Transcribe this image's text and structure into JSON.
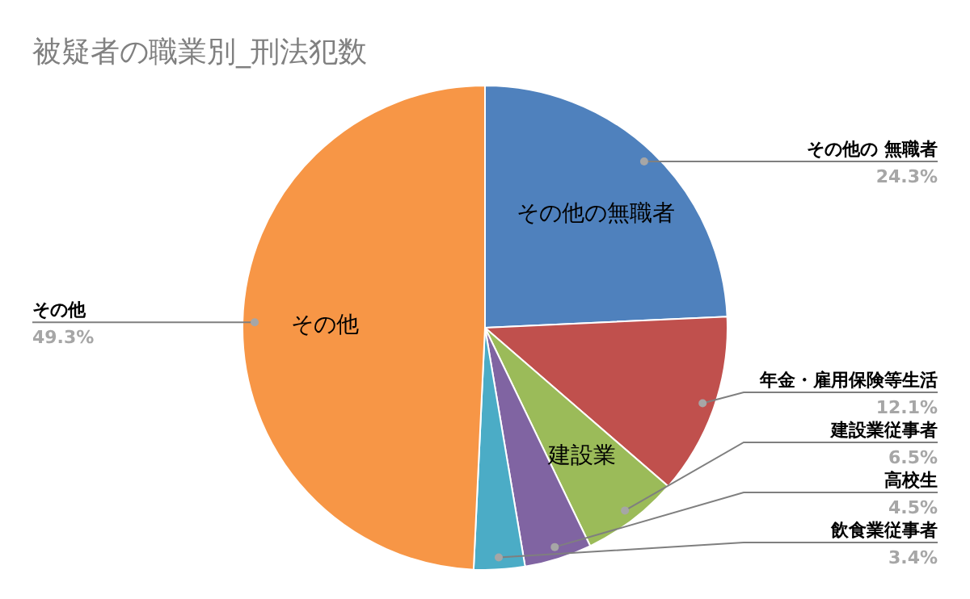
{
  "chart_data": {
    "type": "pie",
    "title": "被疑者の職業別_刑法犯数",
    "categories": [
      "その他の 無職者",
      "年金・雇用保険等生活",
      "建設業従事者",
      "高校生",
      "飲食業従事者",
      "その他"
    ],
    "values": [
      24.3,
      12.1,
      6.5,
      4.5,
      3.4,
      49.3
    ],
    "value_labels": [
      "24.3%",
      "12.1%",
      "6.5%",
      "4.5%",
      "3.4%",
      "49.3%"
    ],
    "colors": [
      "#4f81bd",
      "#c0504d",
      "#9bbb59",
      "#8064a2",
      "#4bacc6",
      "#f79646"
    ],
    "annotations": [
      {
        "text": "その他の無職者",
        "x": "その他の 無職者"
      },
      {
        "text": "建設業",
        "x": "建設業従事者"
      },
      {
        "text": "その他",
        "x": "その他"
      }
    ],
    "legend": false
  }
}
